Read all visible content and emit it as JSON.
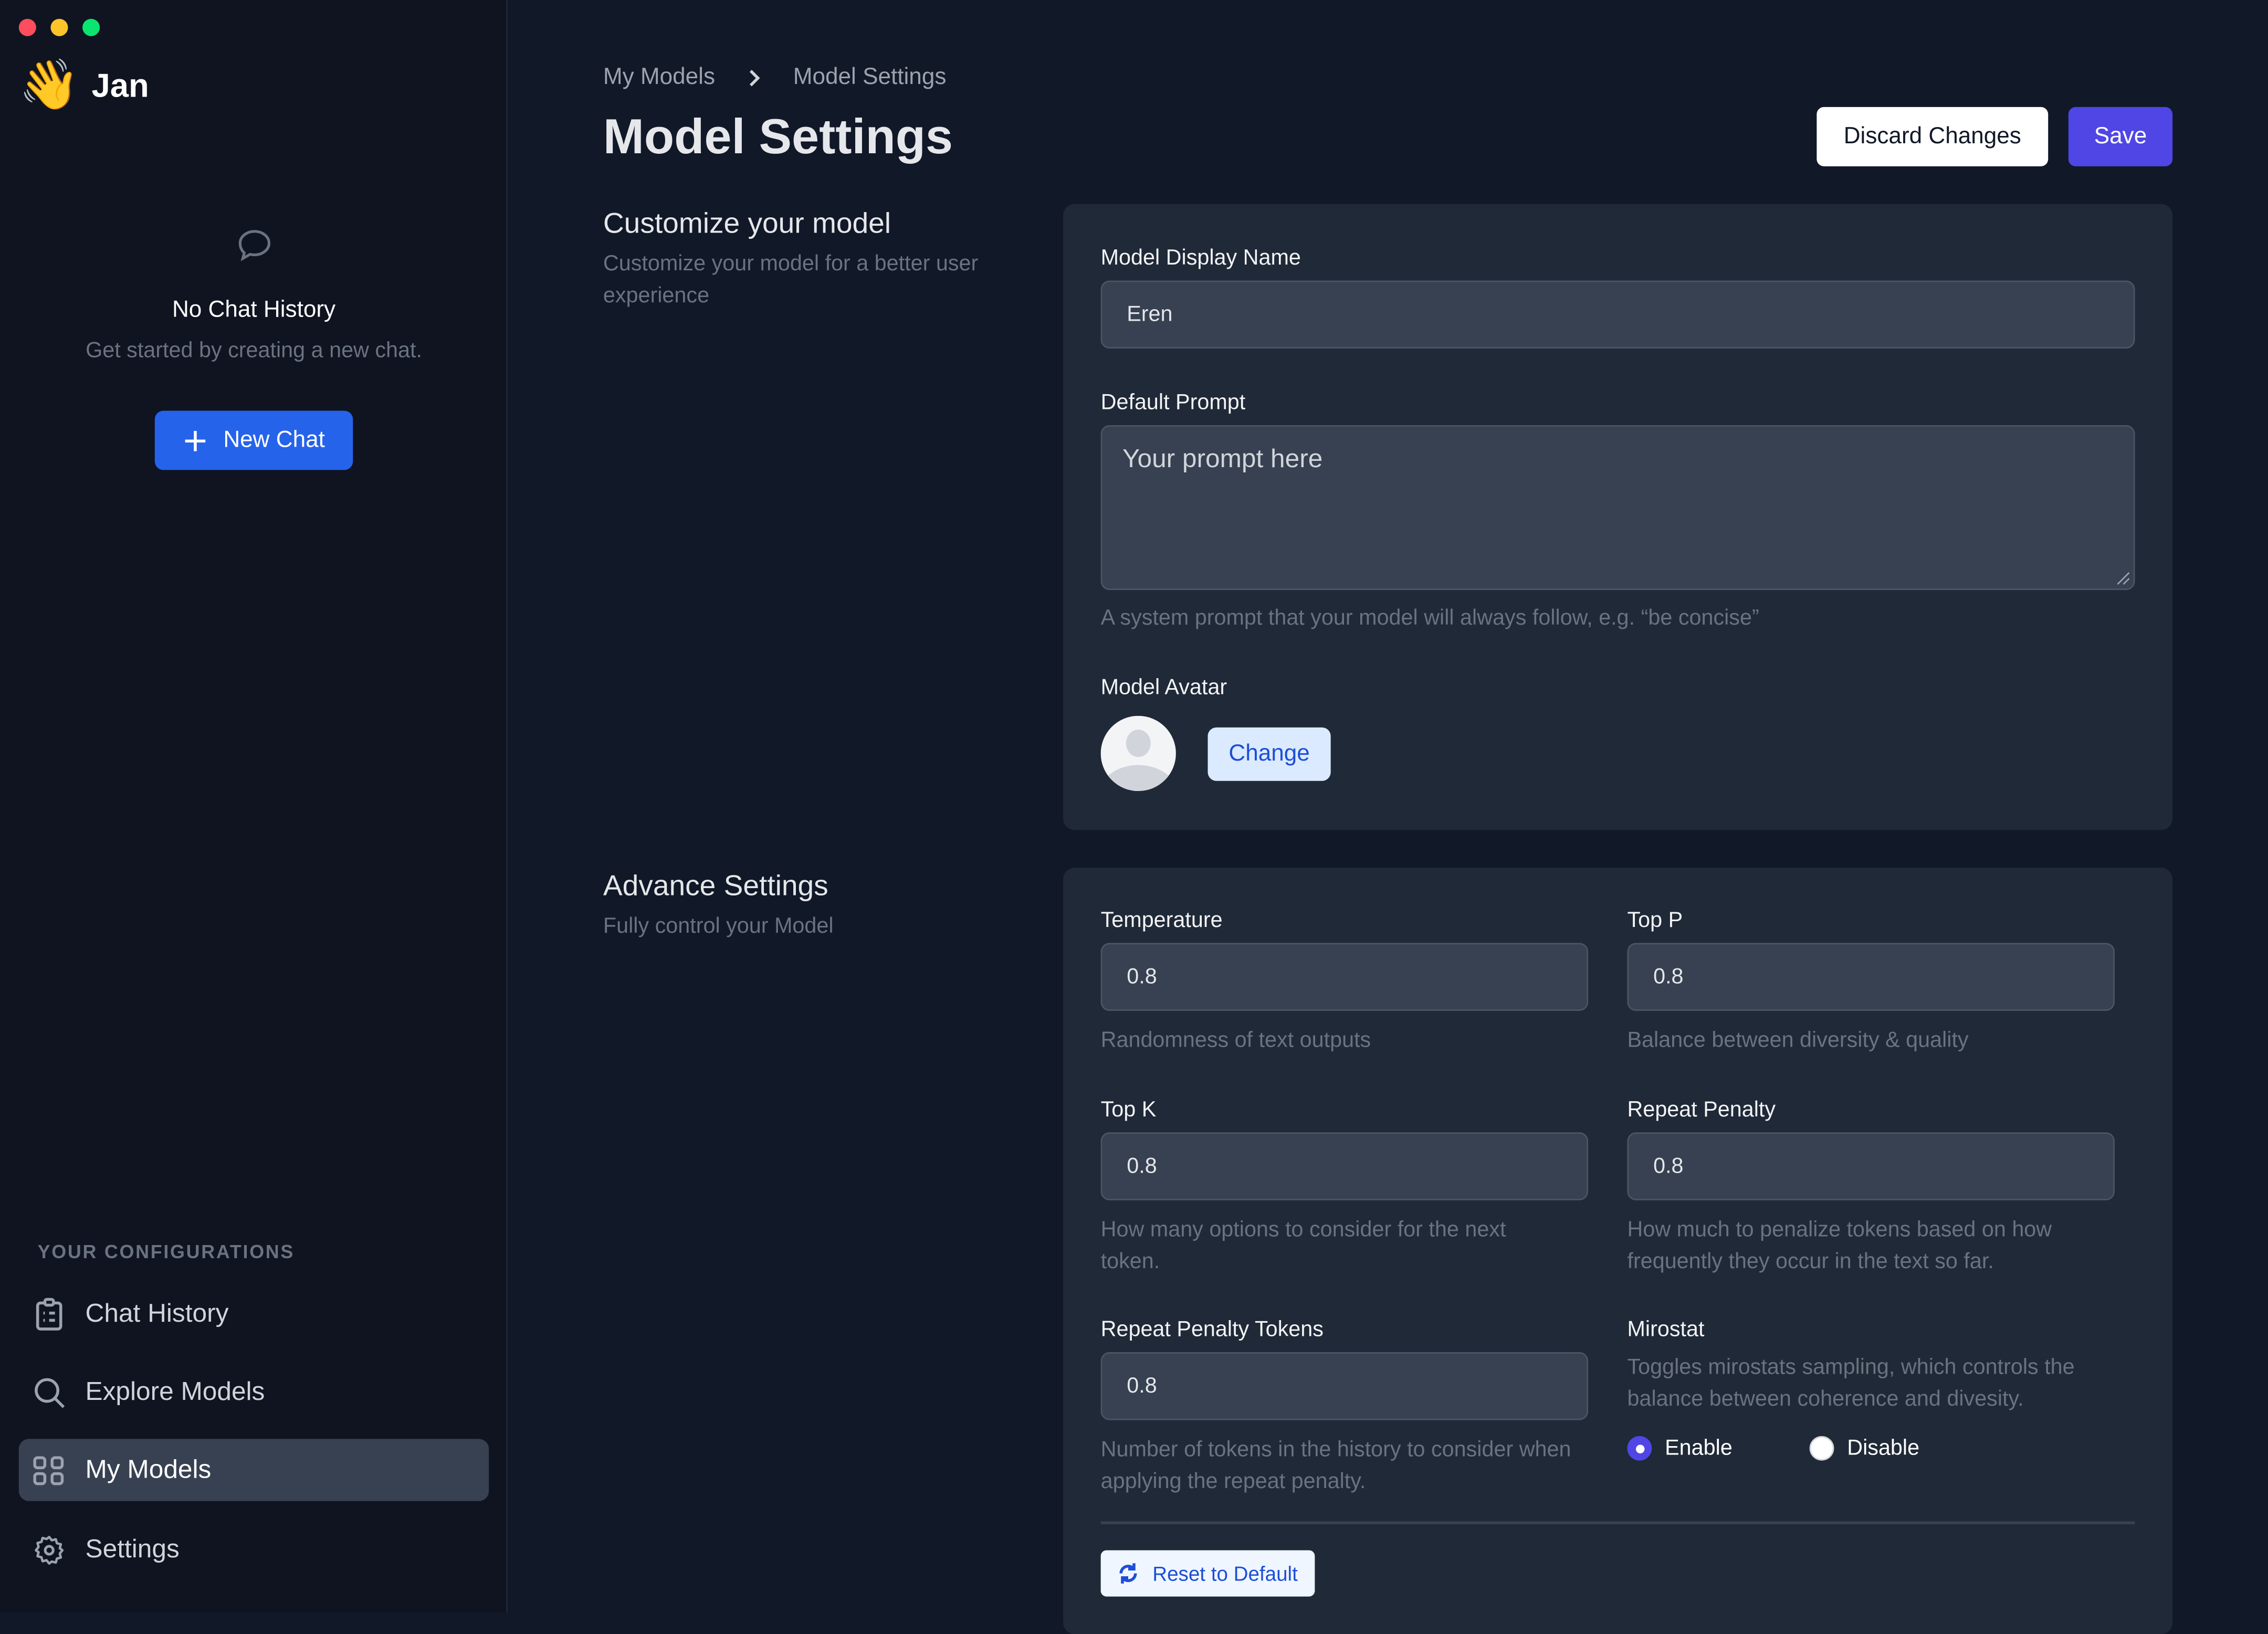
{
  "window": {
    "controls": {
      "close": "#ff5f57",
      "minimize": "#febc2e",
      "maximize": "#28c840"
    }
  },
  "app": {
    "name": "Jan",
    "logo_icon": "waving-hand-emoji"
  },
  "sidebar": {
    "empty_title": "No Chat History",
    "empty_subtitle": "Get started by creating a new chat.",
    "new_chat_label": "New Chat",
    "section_title": "YOUR CONFIGURATIONS",
    "items": [
      {
        "label": "Chat History",
        "icon": "clipboard-icon"
      },
      {
        "label": "Explore Models",
        "icon": "search-icon"
      },
      {
        "label": "My Models",
        "icon": "grid-icon",
        "active": true
      },
      {
        "label": "Settings",
        "icon": "gear-icon"
      }
    ]
  },
  "header": {
    "breadcrumb": [
      "My Models",
      "Model Settings"
    ],
    "title": "Model Settings",
    "discard_label": "Discard Changes",
    "save_label": "Save"
  },
  "customize": {
    "title": "Customize your model",
    "subtitle": "Customize your model for a better user experience",
    "display_name_label": "Model Display Name",
    "display_name_value": "Eren",
    "prompt_label": "Default Prompt",
    "prompt_placeholder": "Your prompt here",
    "prompt_help": "A system prompt that your model will always follow, e.g. “be concise”",
    "avatar_label": "Model Avatar",
    "change_label": "Change"
  },
  "advanced": {
    "title": "Advance Settings",
    "subtitle": "Fully control your Model",
    "fields": [
      {
        "label": "Temperature",
        "value": "0.8",
        "help": "Randomness of text outputs"
      },
      {
        "label": "Top P",
        "value": "0.8",
        "help": "Balance between diversity & quality"
      },
      {
        "label": "Top K",
        "value": "0.8",
        "help": "How many options to consider for the next token."
      },
      {
        "label": "Repeat Penalty",
        "value": "0.8",
        "help": "How much to penalize tokens based on how frequently they occur in the text so far."
      },
      {
        "label": "Repeat Penalty Tokens",
        "value": "0.8",
        "help": "Number of tokens in the history to consider when applying the repeat penalty."
      }
    ],
    "mirostat": {
      "label": "Mirostat",
      "help": "Toggles mirostats sampling, which controls the balance between coherence and divesity.",
      "enable_label": "Enable",
      "disable_label": "Disable",
      "selected": "Enable"
    },
    "reset_label": "Reset to Default"
  }
}
